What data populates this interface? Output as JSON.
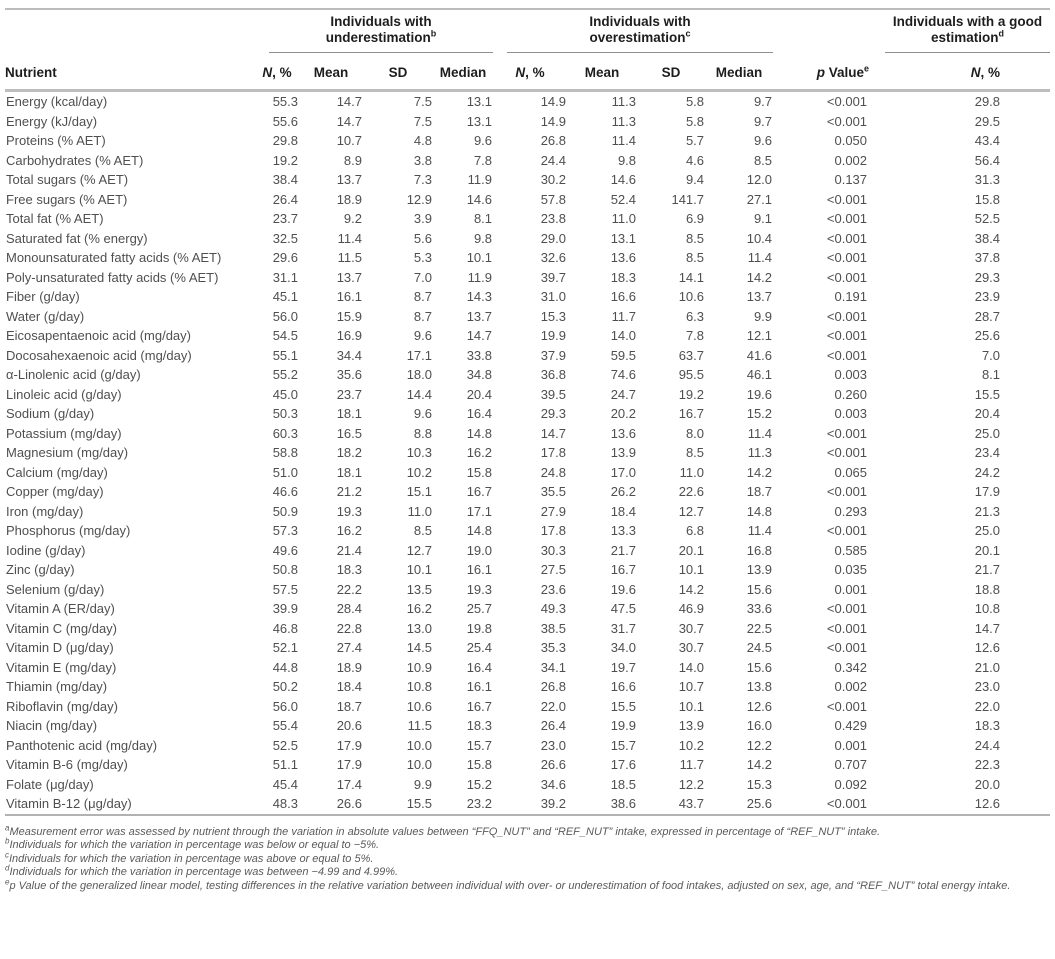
{
  "table": {
    "header": {
      "nutrient": "Nutrient",
      "groups": [
        {
          "line1": "Individuals with",
          "line2": "underestimation",
          "sup": "b"
        },
        {
          "line1": "Individuals with",
          "line2": "overestimation",
          "sup": "c"
        },
        {
          "line1": "Individuals with a good",
          "line2": "estimation",
          "sup": "d"
        }
      ],
      "sub": {
        "n_italic": "N",
        "n_rest": ", %",
        "mean": "Mean",
        "sd": "SD",
        "median": "Median"
      },
      "pvalue": {
        "p_italic": "p",
        "rest": " Value",
        "sup": "e"
      }
    },
    "rows": [
      {
        "nutrient": "Energy (kcal/day)",
        "under": [
          "55.3",
          "14.7",
          "7.5",
          "13.1"
        ],
        "over": [
          "14.9",
          "11.3",
          "5.8",
          "9.7"
        ],
        "p": "<0.001",
        "good": "29.8"
      },
      {
        "nutrient": "Energy (kJ/day)",
        "under": [
          "55.6",
          "14.7",
          "7.5",
          "13.1"
        ],
        "over": [
          "14.9",
          "11.3",
          "5.8",
          "9.7"
        ],
        "p": "<0.001",
        "good": "29.5"
      },
      {
        "nutrient": "Proteins (% AET)",
        "under": [
          "29.8",
          "10.7",
          "4.8",
          "9.6"
        ],
        "over": [
          "26.8",
          "11.4",
          "5.7",
          "9.6"
        ],
        "p": "0.050",
        "good": "43.4"
      },
      {
        "nutrient": "Carbohydrates (% AET)",
        "under": [
          "19.2",
          "8.9",
          "3.8",
          "7.8"
        ],
        "over": [
          "24.4",
          "9.8",
          "4.6",
          "8.5"
        ],
        "p": "0.002",
        "good": "56.4"
      },
      {
        "nutrient": "Total sugars (% AET)",
        "under": [
          "38.4",
          "13.7",
          "7.3",
          "11.9"
        ],
        "over": [
          "30.2",
          "14.6",
          "9.4",
          "12.0"
        ],
        "p": "0.137",
        "good": "31.3"
      },
      {
        "nutrient": "Free sugars (% AET)",
        "under": [
          "26.4",
          "18.9",
          "12.9",
          "14.6"
        ],
        "over": [
          "57.8",
          "52.4",
          "141.7",
          "27.1"
        ],
        "p": "<0.001",
        "good": "15.8"
      },
      {
        "nutrient": "Total fat (% AET)",
        "under": [
          "23.7",
          "9.2",
          "3.9",
          "8.1"
        ],
        "over": [
          "23.8",
          "11.0",
          "6.9",
          "9.1"
        ],
        "p": "<0.001",
        "good": "52.5"
      },
      {
        "nutrient": "Saturated fat (% energy)",
        "under": [
          "32.5",
          "11.4",
          "5.6",
          "9.8"
        ],
        "over": [
          "29.0",
          "13.1",
          "8.5",
          "10.4"
        ],
        "p": "<0.001",
        "good": "38.4"
      },
      {
        "nutrient": "Monounsaturated fatty acids (% AET)",
        "under": [
          "29.6",
          "11.5",
          "5.3",
          "10.1"
        ],
        "over": [
          "32.6",
          "13.6",
          "8.5",
          "11.4"
        ],
        "p": "<0.001",
        "good": "37.8"
      },
      {
        "nutrient": "Poly-unsaturated fatty acids (% AET)",
        "under": [
          "31.1",
          "13.7",
          "7.0",
          "11.9"
        ],
        "over": [
          "39.7",
          "18.3",
          "14.1",
          "14.2"
        ],
        "p": "<0.001",
        "good": "29.3"
      },
      {
        "nutrient": "Fiber (g/day)",
        "under": [
          "45.1",
          "16.1",
          "8.7",
          "14.3"
        ],
        "over": [
          "31.0",
          "16.6",
          "10.6",
          "13.7"
        ],
        "p": "0.191",
        "good": "23.9"
      },
      {
        "nutrient": "Water (g/day)",
        "under": [
          "56.0",
          "15.9",
          "8.7",
          "13.7"
        ],
        "over": [
          "15.3",
          "11.7",
          "6.3",
          "9.9"
        ],
        "p": "<0.001",
        "good": "28.7"
      },
      {
        "nutrient": "Eicosapentaenoic acid (mg/day)",
        "under": [
          "54.5",
          "16.9",
          "9.6",
          "14.7"
        ],
        "over": [
          "19.9",
          "14.0",
          "7.8",
          "12.1"
        ],
        "p": "<0.001",
        "good": "25.6"
      },
      {
        "nutrient": "Docosahexaenoic acid (mg/day)",
        "under": [
          "55.1",
          "34.4",
          "17.1",
          "33.8"
        ],
        "over": [
          "37.9",
          "59.5",
          "63.7",
          "41.6"
        ],
        "p": "<0.001",
        "good": "7.0"
      },
      {
        "nutrient": "α-Linolenic acid (g/day)",
        "under": [
          "55.2",
          "35.6",
          "18.0",
          "34.8"
        ],
        "over": [
          "36.8",
          "74.6",
          "95.5",
          "46.1"
        ],
        "p": "0.003",
        "good": "8.1"
      },
      {
        "nutrient": "Linoleic acid (g/day)",
        "under": [
          "45.0",
          "23.7",
          "14.4",
          "20.4"
        ],
        "over": [
          "39.5",
          "24.7",
          "19.2",
          "19.6"
        ],
        "p": "0.260",
        "good": "15.5"
      },
      {
        "nutrient": "Sodium (g/day)",
        "under": [
          "50.3",
          "18.1",
          "9.6",
          "16.4"
        ],
        "over": [
          "29.3",
          "20.2",
          "16.7",
          "15.2"
        ],
        "p": "0.003",
        "good": "20.4"
      },
      {
        "nutrient": "Potassium (mg/day)",
        "under": [
          "60.3",
          "16.5",
          "8.8",
          "14.8"
        ],
        "over": [
          "14.7",
          "13.6",
          "8.0",
          "11.4"
        ],
        "p": "<0.001",
        "good": "25.0"
      },
      {
        "nutrient": "Magnesium (mg/day)",
        "under": [
          "58.8",
          "18.2",
          "10.3",
          "16.2"
        ],
        "over": [
          "17.8",
          "13.9",
          "8.5",
          "11.3"
        ],
        "p": "<0.001",
        "good": "23.4"
      },
      {
        "nutrient": "Calcium (mg/day)",
        "under": [
          "51.0",
          "18.1",
          "10.2",
          "15.8"
        ],
        "over": [
          "24.8",
          "17.0",
          "11.0",
          "14.2"
        ],
        "p": "0.065",
        "good": "24.2"
      },
      {
        "nutrient": "Copper (mg/day)",
        "under": [
          "46.6",
          "21.2",
          "15.1",
          "16.7"
        ],
        "over": [
          "35.5",
          "26.2",
          "22.6",
          "18.7"
        ],
        "p": "<0.001",
        "good": "17.9"
      },
      {
        "nutrient": "Iron (mg/day)",
        "under": [
          "50.9",
          "19.3",
          "11.0",
          "17.1"
        ],
        "over": [
          "27.9",
          "18.4",
          "12.7",
          "14.8"
        ],
        "p": "0.293",
        "good": "21.3"
      },
      {
        "nutrient": "Phosphorus (mg/day)",
        "under": [
          "57.3",
          "16.2",
          "8.5",
          "14.8"
        ],
        "over": [
          "17.8",
          "13.3",
          "6.8",
          "11.4"
        ],
        "p": "<0.001",
        "good": "25.0"
      },
      {
        "nutrient": "Iodine (g/day)",
        "under": [
          "49.6",
          "21.4",
          "12.7",
          "19.0"
        ],
        "over": [
          "30.3",
          "21.7",
          "20.1",
          "16.8"
        ],
        "p": "0.585",
        "good": "20.1"
      },
      {
        "nutrient": "Zinc (g/day)",
        "under": [
          "50.8",
          "18.3",
          "10.1",
          "16.1"
        ],
        "over": [
          "27.5",
          "16.7",
          "10.1",
          "13.9"
        ],
        "p": "0.035",
        "good": "21.7"
      },
      {
        "nutrient": "Selenium (g/day)",
        "under": [
          "57.5",
          "22.2",
          "13.5",
          "19.3"
        ],
        "over": [
          "23.6",
          "19.6",
          "14.2",
          "15.6"
        ],
        "p": "0.001",
        "good": "18.8"
      },
      {
        "nutrient": "Vitamin A (ER/day)",
        "under": [
          "39.9",
          "28.4",
          "16.2",
          "25.7"
        ],
        "over": [
          "49.3",
          "47.5",
          "46.9",
          "33.6"
        ],
        "p": "<0.001",
        "good": "10.8"
      },
      {
        "nutrient": "Vitamin C (mg/day)",
        "under": [
          "46.8",
          "22.8",
          "13.0",
          "19.8"
        ],
        "over": [
          "38.5",
          "31.7",
          "30.7",
          "22.5"
        ],
        "p": "<0.001",
        "good": "14.7"
      },
      {
        "nutrient": "Vitamin D (μg/day)",
        "under": [
          "52.1",
          "27.4",
          "14.5",
          "25.4"
        ],
        "over": [
          "35.3",
          "34.0",
          "30.7",
          "24.5"
        ],
        "p": "<0.001",
        "good": "12.6"
      },
      {
        "nutrient": "Vitamin E (mg/day)",
        "under": [
          "44.8",
          "18.9",
          "10.9",
          "16.4"
        ],
        "over": [
          "34.1",
          "19.7",
          "14.0",
          "15.6"
        ],
        "p": "0.342",
        "good": "21.0"
      },
      {
        "nutrient": "Thiamin (mg/day)",
        "under": [
          "50.2",
          "18.4",
          "10.8",
          "16.1"
        ],
        "over": [
          "26.8",
          "16.6",
          "10.7",
          "13.8"
        ],
        "p": "0.002",
        "good": "23.0"
      },
      {
        "nutrient": "Riboflavin (mg/day)",
        "under": [
          "56.0",
          "18.7",
          "10.6",
          "16.7"
        ],
        "over": [
          "22.0",
          "15.5",
          "10.1",
          "12.6"
        ],
        "p": "<0.001",
        "good": "22.0"
      },
      {
        "nutrient": "Niacin (mg/day)",
        "under": [
          "55.4",
          "20.6",
          "11.5",
          "18.3"
        ],
        "over": [
          "26.4",
          "19.9",
          "13.9",
          "16.0"
        ],
        "p": "0.429",
        "good": "18.3"
      },
      {
        "nutrient": "Panthotenic acid (mg/day)",
        "under": [
          "52.5",
          "17.9",
          "10.0",
          "15.7"
        ],
        "over": [
          "23.0",
          "15.7",
          "10.2",
          "12.2"
        ],
        "p": "0.001",
        "good": "24.4"
      },
      {
        "nutrient": "Vitamin B-6 (mg/day)",
        "under": [
          "51.1",
          "17.9",
          "10.0",
          "15.8"
        ],
        "over": [
          "26.6",
          "17.6",
          "11.7",
          "14.2"
        ],
        "p": "0.707",
        "good": "22.3"
      },
      {
        "nutrient": "Folate (μg/day)",
        "under": [
          "45.4",
          "17.4",
          "9.9",
          "15.2"
        ],
        "over": [
          "34.6",
          "18.5",
          "12.2",
          "15.3"
        ],
        "p": "0.092",
        "good": "20.0"
      },
      {
        "nutrient": "Vitamin B-12 (μg/day)",
        "under": [
          "48.3",
          "26.6",
          "15.5",
          "23.2"
        ],
        "over": [
          "39.2",
          "38.6",
          "43.7",
          "25.6"
        ],
        "p": "<0.001",
        "good": "12.6"
      }
    ],
    "footnotes": [
      {
        "sup": "a",
        "text": "Measurement error was assessed by nutrient through the variation in absolute values between “FFQ_NUT” and “REF_NUT” intake, expressed in percentage of “REF_NUT” intake."
      },
      {
        "sup": "b",
        "text": "Individuals for which the variation in percentage was below or equal to −5%."
      },
      {
        "sup": "c",
        "text": "Individuals for which the variation in percentage was above or equal to 5%."
      },
      {
        "sup": "d",
        "text": "Individuals for which the variation in percentage was between −4.99 and 4.99%."
      },
      {
        "sup": "e",
        "text": "p Value of the generalized linear model, testing differences in the relative variation between individual with over- or underestimation of food intakes, adjusted on sex, age, and “REF_NUT” total energy intake."
      }
    ]
  }
}
